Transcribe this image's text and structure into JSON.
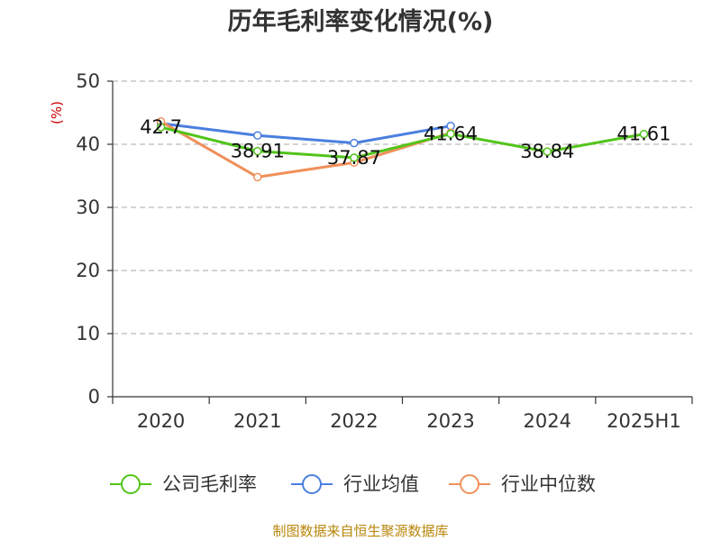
{
  "title": "历年毛利率变化情况(%)",
  "unit": "(%)",
  "source": "制图数据来自恒生聚源数据库",
  "chart_data": {
    "type": "line",
    "title": "历年毛利率变化情况(%)",
    "ylabel": "(%)",
    "categories": [
      "2020",
      "2021",
      "2022",
      "2023",
      "2024",
      "2025H1"
    ],
    "ylim": [
      0,
      50
    ],
    "yticks": [
      0,
      10,
      20,
      30,
      40,
      50
    ],
    "grid": true,
    "legend_position": "bottom",
    "series": [
      {
        "name": "公司毛利率",
        "color": "#52c41a",
        "values": [
          42.7,
          38.91,
          37.87,
          41.64,
          38.84,
          41.61
        ],
        "labels": [
          "42.7",
          "38.91",
          "37.87",
          "41.64",
          "38.84",
          "41.61"
        ]
      },
      {
        "name": "行业均值",
        "color": "#4a7fe0",
        "values": [
          43.3,
          41.4,
          40.2,
          42.9,
          null,
          null
        ]
      },
      {
        "name": "行业中位数",
        "color": "#f0905a",
        "values": [
          43.6,
          34.8,
          37.1,
          41.8,
          null,
          null
        ]
      }
    ]
  }
}
